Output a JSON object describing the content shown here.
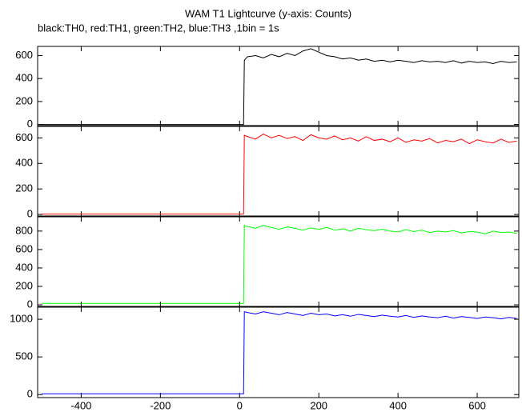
{
  "title": "WAM T1 Lightcurve (y-axis: Counts)",
  "subtitle": "black:TH0, red:TH1, green:TH2, blue:TH3 ,1bin = 1s",
  "chart_data": [
    {
      "type": "line",
      "color": "#000000",
      "x": [
        -500,
        -400,
        -300,
        -200,
        -100,
        0,
        10,
        12,
        20,
        40,
        60,
        80,
        100,
        120,
        140,
        160,
        180,
        200,
        220,
        240,
        260,
        280,
        300,
        320,
        340,
        360,
        380,
        400,
        420,
        440,
        460,
        480,
        500,
        520,
        540,
        560,
        580,
        600,
        620,
        640,
        660,
        680,
        700
      ],
      "values": [
        0,
        0,
        0,
        0,
        0,
        0,
        0,
        560,
        590,
        600,
        580,
        610,
        590,
        620,
        600,
        640,
        660,
        630,
        600,
        590,
        570,
        580,
        560,
        570,
        550,
        560,
        545,
        560,
        550,
        540,
        555,
        545,
        550,
        540,
        555,
        535,
        550,
        540,
        545,
        530,
        550,
        540,
        545
      ],
      "xlim": [
        -510,
        705
      ],
      "ylim": [
        -10,
        680
      ],
      "xticks": [
        -400,
        -200,
        0,
        200,
        400,
        600
      ],
      "yticks": [
        0,
        200,
        400,
        600
      ]
    },
    {
      "type": "line",
      "color": "#ff0000",
      "x": [
        -500,
        -400,
        -300,
        -200,
        -100,
        0,
        10,
        12,
        20,
        40,
        60,
        80,
        100,
        120,
        140,
        160,
        180,
        200,
        220,
        240,
        260,
        280,
        300,
        320,
        340,
        360,
        380,
        400,
        420,
        440,
        460,
        480,
        500,
        520,
        540,
        560,
        580,
        600,
        620,
        640,
        660,
        680,
        700
      ],
      "values": [
        3,
        3,
        3,
        3,
        3,
        3,
        3,
        620,
        610,
        590,
        630,
        600,
        620,
        595,
        610,
        580,
        625,
        600,
        590,
        615,
        585,
        600,
        575,
        610,
        580,
        590,
        570,
        600,
        565,
        585,
        575,
        595,
        560,
        580,
        570,
        590,
        555,
        585,
        570,
        560,
        590,
        565,
        575
      ],
      "xlim": [
        -510,
        705
      ],
      "ylim": [
        -12,
        690
      ],
      "xticks": [
        -400,
        -200,
        0,
        200,
        400,
        600
      ],
      "yticks": [
        0,
        200,
        400,
        600
      ]
    },
    {
      "type": "line",
      "color": "#00ff00",
      "x": [
        -500,
        -400,
        -300,
        -200,
        -100,
        0,
        10,
        12,
        20,
        40,
        60,
        80,
        100,
        120,
        140,
        160,
        180,
        200,
        220,
        240,
        260,
        280,
        300,
        320,
        340,
        360,
        380,
        400,
        420,
        440,
        460,
        480,
        500,
        520,
        540,
        560,
        580,
        600,
        620,
        640,
        660,
        680,
        700
      ],
      "values": [
        15,
        15,
        15,
        15,
        15,
        15,
        15,
        860,
        850,
        830,
        860,
        840,
        820,
        845,
        830,
        810,
        835,
        820,
        840,
        810,
        825,
        800,
        830,
        815,
        805,
        820,
        800,
        790,
        815,
        795,
        810,
        785,
        800,
        790,
        805,
        780,
        795,
        790,
        770,
        800,
        785,
        790,
        775
      ],
      "xlim": [
        -510,
        705
      ],
      "ylim": [
        -17,
        955
      ],
      "xticks": [
        -400,
        -200,
        0,
        200,
        400,
        600
      ],
      "yticks": [
        0,
        200,
        400,
        600,
        800
      ]
    },
    {
      "type": "line",
      "color": "#0000ff",
      "x": [
        -500,
        -400,
        -300,
        -200,
        -100,
        0,
        10,
        12,
        20,
        40,
        60,
        80,
        100,
        120,
        140,
        160,
        180,
        200,
        220,
        240,
        260,
        280,
        300,
        320,
        340,
        360,
        380,
        400,
        420,
        440,
        460,
        480,
        500,
        520,
        540,
        560,
        580,
        600,
        620,
        640,
        660,
        680,
        700
      ],
      "values": [
        10,
        10,
        10,
        10,
        10,
        10,
        10,
        1100,
        1090,
        1070,
        1100,
        1080,
        1060,
        1090,
        1070,
        1050,
        1080,
        1060,
        1070,
        1045,
        1060,
        1040,
        1065,
        1050,
        1035,
        1055,
        1040,
        1030,
        1050,
        1025,
        1045,
        1030,
        1020,
        1040,
        1015,
        1035,
        1025,
        1010,
        1030,
        1020,
        1005,
        1025,
        1010
      ],
      "xlim": [
        -510,
        705
      ],
      "ylim": [
        -40,
        1160
      ],
      "xticks": [
        -400,
        -200,
        0,
        200,
        400,
        600
      ],
      "yticks": [
        0,
        500,
        1000
      ]
    }
  ]
}
